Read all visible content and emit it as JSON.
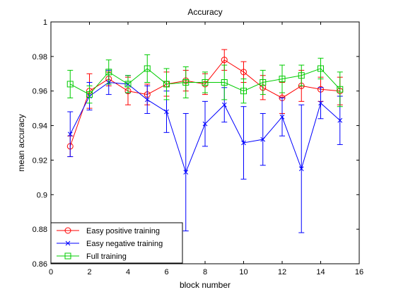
{
  "chart_data": {
    "type": "line",
    "title": "Accuracy",
    "xlabel": "block number",
    "ylabel": "mean accuracy",
    "xlim": [
      0,
      16
    ],
    "ylim": [
      0.86,
      1
    ],
    "xticks": [
      0,
      2,
      4,
      6,
      8,
      10,
      12,
      14,
      16
    ],
    "yticks": [
      0.86,
      0.88,
      0.9,
      0.92,
      0.94,
      0.96,
      0.98,
      1
    ],
    "ytick_labels": [
      "0.86",
      "0.88",
      "0.9",
      "0.92",
      "0.94",
      "0.96",
      "0.98",
      "1"
    ],
    "grid": false,
    "legend": "bottom-left",
    "x": [
      1,
      2,
      3,
      4,
      5,
      6,
      7,
      8,
      9,
      10,
      11,
      12,
      13,
      14,
      15
    ],
    "series": [
      {
        "name": "Easy positive training",
        "color": "#ff0000",
        "marker": "circle",
        "values": [
          0.928,
          0.96,
          0.967,
          0.96,
          0.958,
          0.964,
          0.966,
          0.964,
          0.978,
          0.971,
          0.962,
          0.956,
          0.963,
          0.961,
          0.96
        ],
        "errors": [
          0.006,
          0.01,
          0.004,
          0.008,
          0.006,
          0.007,
          0.006,
          0.006,
          0.006,
          0.006,
          0.007,
          0.009,
          0.009,
          0.007,
          0.008
        ]
      },
      {
        "name": "Easy negative training",
        "color": "#0000ff",
        "marker": "x",
        "values": [
          0.935,
          0.957,
          0.965,
          0.964,
          0.955,
          0.948,
          0.913,
          0.941,
          0.952,
          0.93,
          0.932,
          0.945,
          0.915,
          0.953,
          0.943
        ],
        "errors": [
          0.013,
          0.008,
          0.007,
          0.005,
          0.008,
          0.012,
          0.034,
          0.013,
          0.01,
          0.021,
          0.015,
          0.011,
          0.037,
          0.009,
          0.014
        ]
      },
      {
        "name": "Full training",
        "color": "#00cc00",
        "marker": "square",
        "values": [
          0.964,
          0.958,
          0.971,
          0.964,
          0.973,
          0.964,
          0.965,
          0.965,
          0.965,
          0.96,
          0.965,
          0.967,
          0.969,
          0.973,
          0.961
        ],
        "errors": [
          0.008,
          0.005,
          0.007,
          0.005,
          0.008,
          0.009,
          0.009,
          0.006,
          0.01,
          0.007,
          0.007,
          0.008,
          0.006,
          0.006,
          0.01
        ]
      }
    ]
  }
}
